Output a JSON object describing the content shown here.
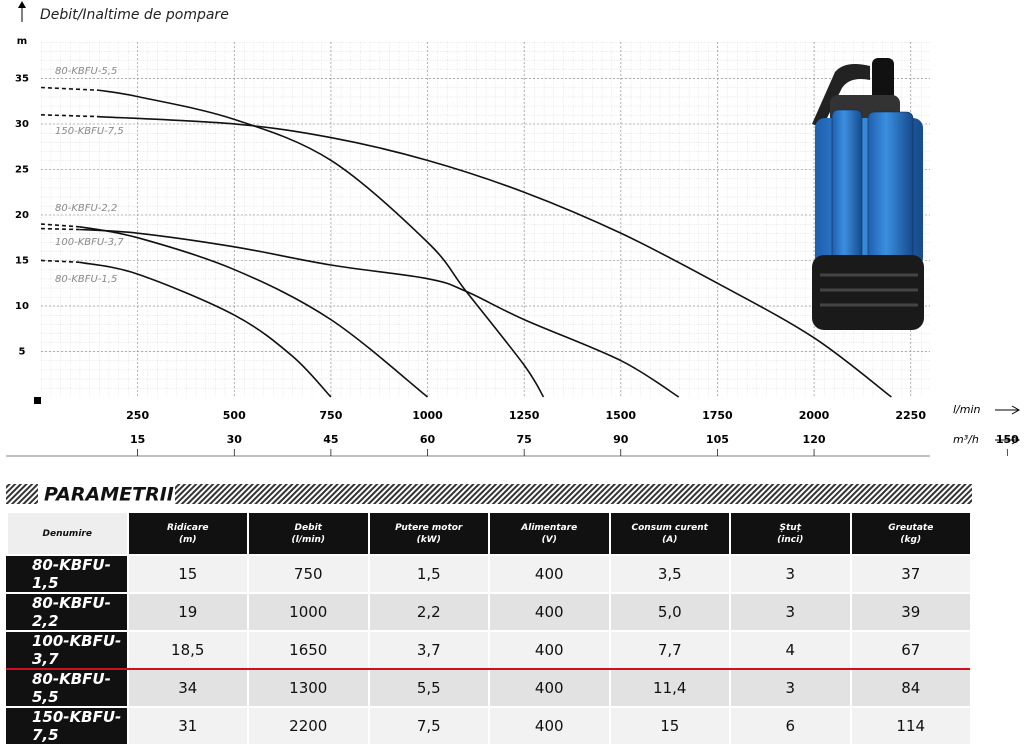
{
  "chart_data": {
    "type": "line",
    "title": "Debit/Inaltime de pompare",
    "ylabel": "m",
    "xlabel": "l/min",
    "x2label": "m³/h",
    "xlim": [
      0,
      2300
    ],
    "xticks": [
      250,
      500,
      750,
      1000,
      1250,
      1500,
      1750,
      2000,
      2250
    ],
    "x2lim": [
      0,
      138
    ],
    "x2ticks": [
      15,
      30,
      45,
      60,
      75,
      90,
      105,
      120,
      150
    ],
    "ylim": [
      0,
      39
    ],
    "yticks": [
      5,
      10,
      15,
      20,
      25,
      30,
      35
    ],
    "grid": true,
    "series": [
      {
        "name": "80-KBFU-5,5",
        "color": "#111111",
        "x": [
          0,
          150,
          250,
          500,
          750,
          1000,
          1100,
          1250,
          1300
        ],
        "values": [
          34,
          33.7,
          33,
          30.5,
          26,
          17,
          11.6,
          3.5,
          0
        ]
      },
      {
        "name": "150-KBFU-7,5",
        "color": "#111111",
        "x": [
          0,
          150,
          500,
          750,
          1000,
          1250,
          1500,
          1750,
          2000,
          2200
        ],
        "values": [
          31,
          30.8,
          30,
          28.5,
          26,
          22.5,
          18,
          12.5,
          6.5,
          0
        ]
      },
      {
        "name": "80-KBFU-2,2",
        "color": "#111111",
        "x": [
          0,
          100,
          250,
          500,
          750,
          1000
        ],
        "values": [
          19,
          18.7,
          17.5,
          14,
          8.5,
          0
        ]
      },
      {
        "name": "100-KBFU-3,7",
        "color": "#111111",
        "x": [
          0,
          100,
          250,
          500,
          750,
          1000,
          1100,
          1250,
          1500,
          1650
        ],
        "values": [
          18.5,
          18.4,
          18,
          16.5,
          14.5,
          13,
          11.6,
          8.5,
          4,
          0
        ]
      },
      {
        "name": "80-KBFU-1,5",
        "color": "#111111",
        "x": [
          0,
          100,
          250,
          500,
          650,
          750
        ],
        "values": [
          15,
          14.8,
          13.5,
          9,
          4.5,
          0
        ]
      }
    ]
  },
  "table": {
    "title": "PARAMETRII",
    "columns": [
      {
        "name": "Denumire"
      },
      {
        "name": "Ridicare",
        "unit": "(m)"
      },
      {
        "name": "Debit",
        "unit": "(l/min)"
      },
      {
        "name": "Putere motor",
        "unit": "(kW)"
      },
      {
        "name": "Alimentare",
        "unit": "(V)"
      },
      {
        "name": "Consum curent",
        "unit": "(A)"
      },
      {
        "name": "Ștuț",
        "unit": "(inci)"
      },
      {
        "name": "Greutate",
        "unit": "(kg)"
      }
    ],
    "rows": [
      [
        "80-KBFU-1,5",
        "15",
        "750",
        "1,5",
        "400",
        "3,5",
        "3",
        "37"
      ],
      [
        "80-KBFU-2,2",
        "19",
        "1000",
        "2,2",
        "400",
        "5,0",
        "3",
        "39"
      ],
      [
        "100-KBFU-3,7",
        "18,5",
        "1650",
        "3,7",
        "400",
        "7,7",
        "4",
        "67"
      ],
      [
        "80-KBFU-5,5",
        "34",
        "1300",
        "5,5",
        "400",
        "11,4",
        "3",
        "84"
      ],
      [
        "150-KBFU-7,5",
        "31",
        "2200",
        "7,5",
        "400",
        "15",
        "6",
        "114"
      ]
    ]
  }
}
